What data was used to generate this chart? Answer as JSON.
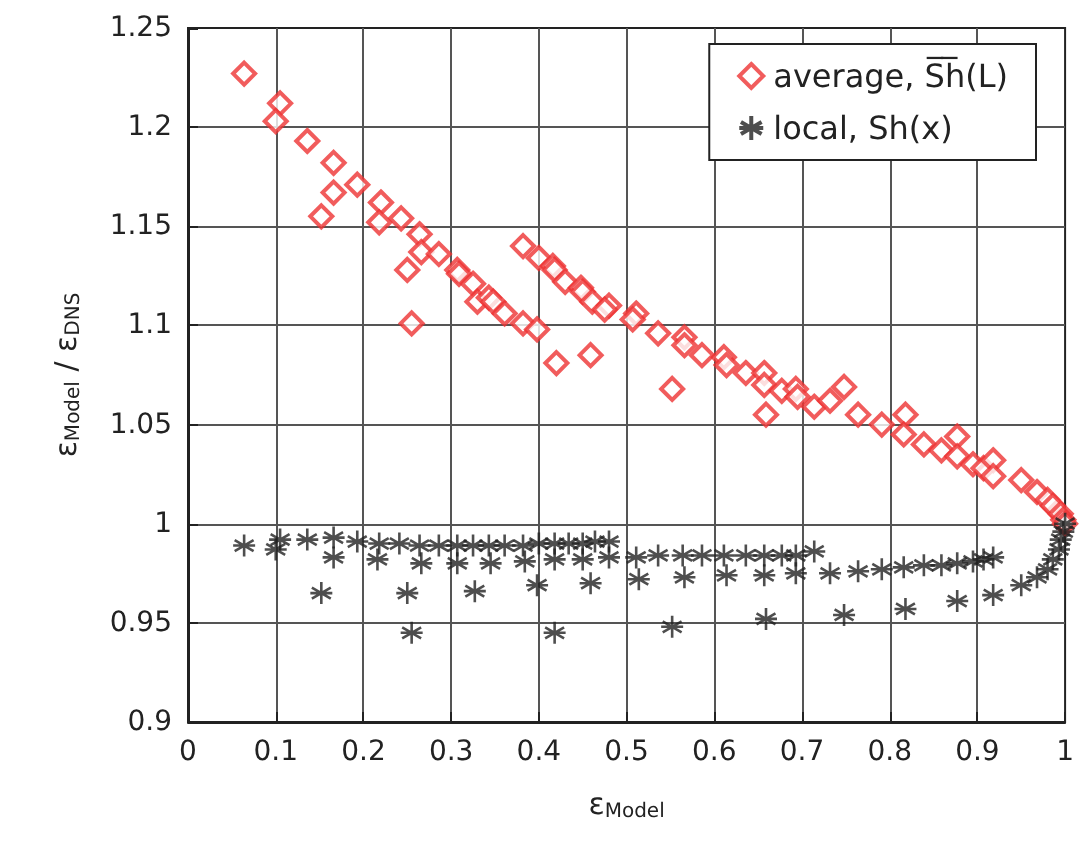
{
  "chart_data": {
    "type": "scatter",
    "xlabel": "ε$_{Model}$",
    "ylabel": "ε$_{Model}$ / ε$_{DNS}$",
    "xlim": [
      0,
      1
    ],
    "xticks": [
      0,
      0.1,
      0.2,
      0.3,
      0.4,
      0.5,
      0.6,
      0.7,
      0.8,
      0.9,
      1
    ],
    "ylim": [
      0.9,
      1.25
    ],
    "yticks": [
      0.9,
      0.95,
      1,
      1.05,
      1.1,
      1.15,
      1.2,
      1.25
    ],
    "grid": true,
    "legend": "top right",
    "series": [
      {
        "name": "average, S̅h̅(L)",
        "color": "#ee3333",
        "marker": "diamond",
        "x": [
          0.064,
          0.105,
          0.1,
          0.136,
          0.166,
          0.166,
          0.152,
          0.193,
          0.22,
          0.218,
          0.243,
          0.264,
          0.266,
          0.25,
          0.286,
          0.307,
          0.309,
          0.325,
          0.33,
          0.343,
          0.348,
          0.361,
          0.255,
          0.382,
          0.4,
          0.416,
          0.418,
          0.43,
          0.448,
          0.45,
          0.461,
          0.48,
          0.475,
          0.382,
          0.398,
          0.42,
          0.459,
          0.511,
          0.507,
          0.536,
          0.566,
          0.566,
          0.586,
          0.611,
          0.614,
          0.636,
          0.657,
          0.657,
          0.677,
          0.693,
          0.695,
          0.714,
          0.732,
          0.748,
          0.552,
          0.659,
          0.764,
          0.791,
          0.818,
          0.816,
          0.839,
          0.859,
          0.877,
          0.877,
          0.895,
          0.907,
          0.918,
          0.918,
          0.95,
          0.968,
          0.98,
          0.986,
          0.995,
          0.998,
          1.0
        ],
        "values": [
          1.227,
          1.212,
          1.203,
          1.193,
          1.182,
          1.167,
          1.155,
          1.171,
          1.162,
          1.152,
          1.154,
          1.146,
          1.137,
          1.128,
          1.136,
          1.128,
          1.126,
          1.121,
          1.112,
          1.114,
          1.112,
          1.106,
          1.101,
          1.14,
          1.134,
          1.13,
          1.128,
          1.122,
          1.119,
          1.117,
          1.112,
          1.11,
          1.108,
          1.101,
          1.098,
          1.081,
          1.085,
          1.106,
          1.103,
          1.096,
          1.094,
          1.09,
          1.085,
          1.084,
          1.08,
          1.076,
          1.076,
          1.07,
          1.067,
          1.068,
          1.064,
          1.059,
          1.062,
          1.069,
          1.068,
          1.055,
          1.055,
          1.05,
          1.055,
          1.045,
          1.04,
          1.037,
          1.044,
          1.034,
          1.03,
          1.028,
          1.032,
          1.024,
          1.022,
          1.016,
          1.012,
          1.009,
          1.005,
          1.002,
          1.0
        ]
      },
      {
        "name": "local, Sh(x)",
        "color": "#222222",
        "marker": "cross",
        "x": [
          0.064,
          0.105,
          0.1,
          0.136,
          0.166,
          0.166,
          0.152,
          0.193,
          0.218,
          0.216,
          0.241,
          0.25,
          0.255,
          0.264,
          0.266,
          0.286,
          0.307,
          0.307,
          0.327,
          0.325,
          0.343,
          0.345,
          0.361,
          0.382,
          0.384,
          0.398,
          0.4,
          0.418,
          0.418,
          0.418,
          0.434,
          0.45,
          0.45,
          0.459,
          0.464,
          0.48,
          0.48,
          0.511,
          0.514,
          0.536,
          0.564,
          0.566,
          0.552,
          0.586,
          0.611,
          0.614,
          0.636,
          0.657,
          0.657,
          0.659,
          0.677,
          0.693,
          0.693,
          0.714,
          0.732,
          0.748,
          0.764,
          0.791,
          0.816,
          0.818,
          0.839,
          0.859,
          0.877,
          0.877,
          0.895,
          0.907,
          0.918,
          0.918,
          0.95,
          0.968,
          0.98,
          0.986,
          0.993,
          0.995,
          0.998,
          1.0
        ],
        "values": [
          0.989,
          0.992,
          0.987,
          0.992,
          0.993,
          0.983,
          0.965,
          0.991,
          0.99,
          0.982,
          0.99,
          0.965,
          0.945,
          0.989,
          0.98,
          0.989,
          0.989,
          0.98,
          0.966,
          0.989,
          0.989,
          0.98,
          0.989,
          0.989,
          0.981,
          0.969,
          0.99,
          0.99,
          0.945,
          0.982,
          0.99,
          0.99,
          0.982,
          0.97,
          0.991,
          0.991,
          0.983,
          0.983,
          0.972,
          0.984,
          0.984,
          0.973,
          0.948,
          0.984,
          0.984,
          0.974,
          0.984,
          0.984,
          0.974,
          0.952,
          0.984,
          0.984,
          0.975,
          0.986,
          0.975,
          0.954,
          0.976,
          0.977,
          0.978,
          0.957,
          0.979,
          0.979,
          0.98,
          0.961,
          0.981,
          0.982,
          0.983,
          0.964,
          0.969,
          0.973,
          0.977,
          0.982,
          0.987,
          0.992,
          0.996,
          1.0
        ]
      }
    ]
  }
}
